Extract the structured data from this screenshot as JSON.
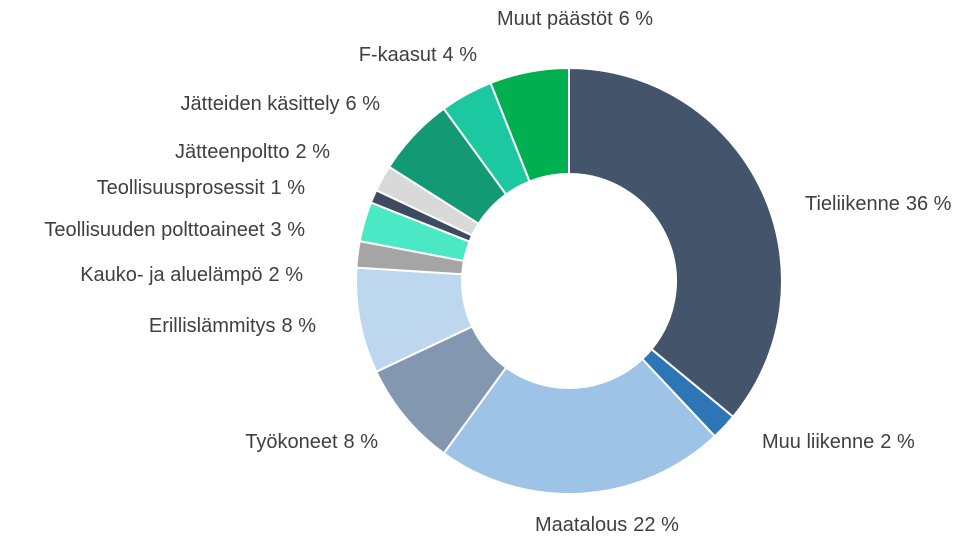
{
  "chart_data": {
    "type": "donut",
    "categories": [
      "Tieliikenne",
      "Muu liikenne",
      "Maatalous",
      "Työkoneet",
      "Erillislämmitys",
      "Kauko- ja aluelämpö",
      "Teollisuuden polttoaineet",
      "Teollisuusprosessit",
      "Jätteenpoltto",
      "Jätteiden käsittely",
      "F-kaasut",
      "Muut päästöt"
    ],
    "values": [
      36,
      2,
      22,
      8,
      8,
      2,
      3,
      1,
      2,
      6,
      4,
      6
    ],
    "value_labels": [
      "36 %",
      "2 %",
      "22 %",
      "8 %",
      "8 %",
      "2 %",
      "3 %",
      "1 %",
      "2 %",
      "6 %",
      "4 %",
      "6 %"
    ],
    "colors": [
      "#44546a",
      "#2e75b6",
      "#9dc3e6",
      "#8497b0",
      "#bdd7ee",
      "#a5a5a5",
      "#4ae8c4",
      "#3e4a60",
      "#d9d9d9",
      "#139a74",
      "#1cc8a0",
      "#00b050"
    ]
  }
}
